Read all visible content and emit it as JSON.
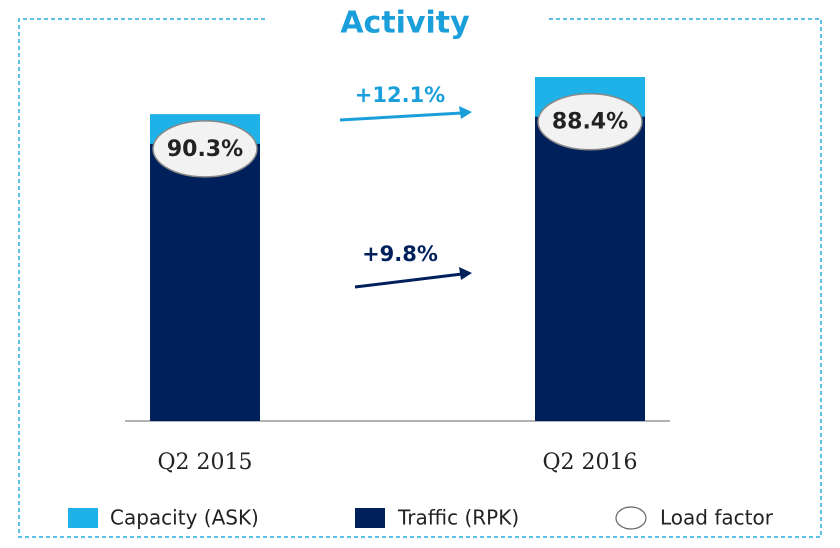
{
  "chart_data": {
    "type": "bar",
    "title": "Activity",
    "categories": [
      "Q2 2015",
      "Q2 2016"
    ],
    "series": [
      {
        "name": "Capacity (ASK)",
        "color": "#1fb2e8",
        "values": [
          100,
          112.1
        ]
      },
      {
        "name": "Traffic (RPK)",
        "color": "#00205b",
        "values": [
          90.3,
          99.15
        ]
      }
    ],
    "load_factor": {
      "name": "Load factor",
      "values": [
        90.3,
        88.4
      ],
      "value_labels": [
        "90.3%",
        "88.4%"
      ]
    },
    "annotations": [
      {
        "text": "+12.1%",
        "color": "#1a9fdb"
      },
      {
        "text": "+9.8%",
        "color": "#00205b"
      }
    ]
  }
}
